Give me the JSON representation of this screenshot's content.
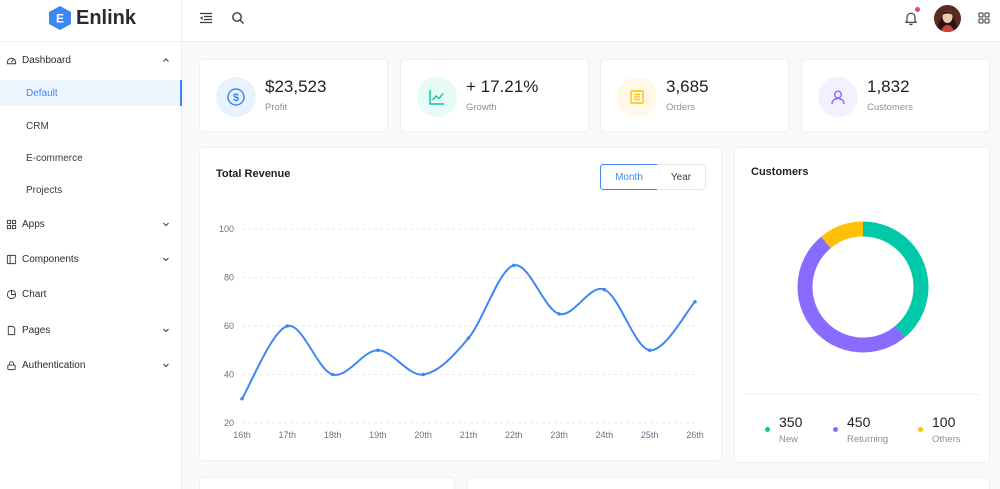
{
  "app": {
    "name": "Enlink",
    "logo_letter": "E"
  },
  "header": {
    "icons": [
      "menu-fold-icon",
      "search-icon",
      "bell-icon",
      "avatar",
      "apps-grid-icon"
    ]
  },
  "sidebar": {
    "groups": [
      {
        "label": "Dashboard",
        "icon": "dashboard-icon",
        "expanded": true,
        "items": [
          {
            "label": "Default",
            "active": true
          },
          {
            "label": "CRM"
          },
          {
            "label": "E-commerce"
          },
          {
            "label": "Projects"
          }
        ]
      },
      {
        "label": "Apps",
        "icon": "apps-icon"
      },
      {
        "label": "Components",
        "icon": "components-icon"
      },
      {
        "label": "Chart",
        "icon": "chart-icon"
      },
      {
        "label": "Pages",
        "icon": "pages-icon"
      },
      {
        "label": "Authentication",
        "icon": "lock-icon"
      }
    ]
  },
  "stats": [
    {
      "value": "$23,523",
      "label": "Profit",
      "icon": "dollar-icon",
      "color": "#3f87f5",
      "bg": "#eaf2fe"
    },
    {
      "value": "+ 17.21%",
      "label": "Growth",
      "icon": "line-chart-icon",
      "color": "#00c9a7",
      "bg": "#e6faf6"
    },
    {
      "value": "3,685",
      "label": "Orders",
      "icon": "orders-icon",
      "color": "#ffc107",
      "bg": "#fff8e6"
    },
    {
      "value": "1,832",
      "label": "Customers",
      "icon": "user-icon",
      "color": "#886cff",
      "bg": "#f3f0ff"
    }
  ],
  "revenue": {
    "title": "Total Revenue",
    "toggle": {
      "month": "Month",
      "year": "Year",
      "selected": "Month"
    }
  },
  "customers": {
    "title": "Customers",
    "legend": [
      {
        "value": "350",
        "label": "New",
        "color": "#00c9a7"
      },
      {
        "value": "450",
        "label": "Returning",
        "color": "#886cff"
      },
      {
        "value": "100",
        "label": "Others",
        "color": "#ffc107"
      }
    ]
  },
  "chart_data": [
    {
      "type": "line",
      "title": "Total Revenue",
      "categories": [
        "16th",
        "17th",
        "18th",
        "19th",
        "20th",
        "21th",
        "22th",
        "23th",
        "24th",
        "25th",
        "26th"
      ],
      "values": [
        30,
        60,
        40,
        50,
        40,
        55,
        85,
        65,
        75,
        50,
        70
      ],
      "yticks": [
        20,
        40,
        60,
        80,
        100
      ],
      "ylim": [
        20,
        100
      ],
      "color": "#3f87f5",
      "grid": true
    },
    {
      "type": "pie",
      "title": "Customers",
      "categories": [
        "New",
        "Returning",
        "Others"
      ],
      "values": [
        350,
        450,
        100
      ],
      "colors": [
        "#00c9a7",
        "#886cff",
        "#ffc107"
      ],
      "donut": true
    }
  ]
}
